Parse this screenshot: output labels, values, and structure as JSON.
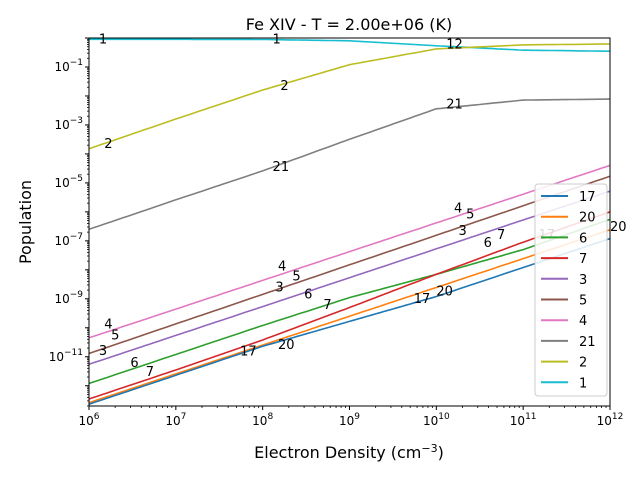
{
  "chart_data": {
    "type": "line",
    "title": "Fe XIV -  T =   2.00e+06 (K)",
    "xlabel": "Electron Density (cm",
    "xlabel_sup": "−3",
    "xlabel_tail": ")",
    "ylabel": "Population",
    "xscale": "log",
    "yscale": "log",
    "xlim": [
      1000000,
      1000000000000
    ],
    "ylim": [
      2e-13,
      1.0
    ],
    "x_ticks": [
      {
        "value": 1000000,
        "base": "10",
        "exp": "6"
      },
      {
        "value": 10000000,
        "base": "10",
        "exp": "7"
      },
      {
        "value": 100000000,
        "base": "10",
        "exp": "8"
      },
      {
        "value": 1000000000,
        "base": "10",
        "exp": "9"
      },
      {
        "value": 10000000000,
        "base": "10",
        "exp": "10"
      },
      {
        "value": 100000000000,
        "base": "10",
        "exp": "11"
      },
      {
        "value": 1000000000000,
        "base": "10",
        "exp": "12"
      }
    ],
    "y_ticks": [
      {
        "value": 1e-11,
        "base": "10",
        "exp": "−11"
      },
      {
        "value": 1e-09,
        "base": "10",
        "exp": "−9"
      },
      {
        "value": 1e-07,
        "base": "10",
        "exp": "−7"
      },
      {
        "value": 1e-05,
        "base": "10",
        "exp": "−5"
      },
      {
        "value": 0.001,
        "base": "10",
        "exp": "−3"
      },
      {
        "value": 0.1,
        "base": "10",
        "exp": "−1"
      }
    ],
    "legend_position": "center-right",
    "legend_order": [
      "17",
      "20",
      "6",
      "7",
      "3",
      "5",
      "4",
      "21",
      "2",
      "1"
    ],
    "series": [
      {
        "name": "1",
        "color": "#17becf",
        "points": [
          [
            1000000.0,
            0.9
          ],
          [
            10000000.0,
            0.9
          ],
          [
            100000000.0,
            0.89
          ],
          [
            1000000000.0,
            0.8
          ],
          [
            10000000000.0,
            0.54
          ],
          [
            100000000000.0,
            0.38
          ],
          [
            1000000000000.0,
            0.35
          ]
        ]
      },
      {
        "name": "2",
        "color": "#bcbd22",
        "points": [
          [
            1000000.0,
            0.00015
          ],
          [
            10000000.0,
            0.0016
          ],
          [
            100000000.0,
            0.016
          ],
          [
            1000000000.0,
            0.12
          ],
          [
            10000000000.0,
            0.42
          ],
          [
            100000000000.0,
            0.58
          ],
          [
            1000000000000.0,
            0.62
          ]
        ]
      },
      {
        "name": "21",
        "color": "#7f7f7f",
        "points": [
          [
            1000000.0,
            2.5e-07
          ],
          [
            10000000.0,
            2.6e-06
          ],
          [
            100000000.0,
            2.6e-05
          ],
          [
            1000000000.0,
            0.00032
          ],
          [
            10000000000.0,
            0.0036
          ],
          [
            100000000000.0,
            0.0072
          ],
          [
            1000000000000.0,
            0.0078
          ]
        ]
      },
      {
        "name": "4",
        "color": "#e377c2",
        "points": [
          [
            1000000.0,
            4.5e-11
          ],
          [
            1000000000000.0,
            4e-05
          ]
        ]
      },
      {
        "name": "5",
        "color": "#8c564b",
        "points": [
          [
            1000000.0,
            1.3e-11
          ],
          [
            1000000000000.0,
            1.7e-05
          ]
        ]
      },
      {
        "name": "3",
        "color": "#9467bd",
        "points": [
          [
            1000000.0,
            5.5e-12
          ],
          [
            1000000000000.0,
            5.2e-06
          ]
        ]
      },
      {
        "name": "6",
        "color": "#2ca02c",
        "points": [
          [
            1000000.0,
            1.2e-12
          ],
          [
            10000000.0,
            1.2e-11
          ],
          [
            100000000.0,
            1.2e-10
          ],
          [
            1000000000.0,
            1.1e-09
          ],
          [
            10000000000.0,
            7e-09
          ],
          [
            100000000000.0,
            5e-08
          ],
          [
            1000000000000.0,
            5.5e-07
          ]
        ]
      },
      {
        "name": "7",
        "color": "#d62728",
        "points": [
          [
            1000000.0,
            3.5e-13
          ],
          [
            10000000.0,
            3.5e-12
          ],
          [
            100000000.0,
            3.8e-11
          ],
          [
            1000000000.0,
            5e-10
          ],
          [
            10000000000.0,
            7e-09
          ],
          [
            100000000000.0,
            9e-08
          ],
          [
            1000000000000.0,
            1e-06
          ]
        ]
      },
      {
        "name": "20",
        "color": "#ff7f0e",
        "points": [
          [
            1000000.0,
            2.6e-13
          ],
          [
            1000000000000.0,
            2.4e-07
          ]
        ]
      },
      {
        "name": "17",
        "color": "#1f77b4",
        "points": [
          [
            1000000.0,
            2.3e-13
          ],
          [
            100000000.0,
            2.3e-11
          ],
          [
            10000000000.0,
            1.2e-09
          ],
          [
            1000000000000.0,
            1.2e-07
          ]
        ]
      }
    ],
    "annotations": [
      {
        "text": "1",
        "x": 1300000.0,
        "y": 0.9
      },
      {
        "text": "1",
        "x": 130000000.0,
        "y": 0.9
      },
      {
        "text": "12",
        "x": 13000000000.0,
        "y": 0.6
      },
      {
        "text": "2",
        "x": 1500000.0,
        "y": 0.00022
      },
      {
        "text": "2",
        "x": 160000000.0,
        "y": 0.022
      },
      {
        "text": "21",
        "x": 130000000.0,
        "y": 3.5e-05
      },
      {
        "text": "21",
        "x": 13000000000.0,
        "y": 0.005
      },
      {
        "text": "4",
        "x": 1500000.0,
        "y": 1.3e-10
      },
      {
        "text": "5",
        "x": 1800000.0,
        "y": 5.5e-11
      },
      {
        "text": "3",
        "x": 1300000.0,
        "y": 1.6e-11
      },
      {
        "text": "6",
        "x": 3000000.0,
        "y": 6e-12
      },
      {
        "text": "7",
        "x": 4500000.0,
        "y": 3e-12
      },
      {
        "text": "17",
        "x": 55000000.0,
        "y": 1.5e-11
      },
      {
        "text": "20",
        "x": 150000000.0,
        "y": 2.5e-11
      },
      {
        "text": "4",
        "x": 150000000.0,
        "y": 1.3e-08
      },
      {
        "text": "5",
        "x": 220000000.0,
        "y": 6e-09
      },
      {
        "text": "3",
        "x": 140000000.0,
        "y": 2.5e-09
      },
      {
        "text": "6",
        "x": 300000000.0,
        "y": 1.4e-09
      },
      {
        "text": "7",
        "x": 500000000.0,
        "y": 6e-10
      },
      {
        "text": "17",
        "x": 5500000000.0,
        "y": 1e-09
      },
      {
        "text": "20",
        "x": 10000000000.0,
        "y": 1.8e-09
      },
      {
        "text": "4",
        "x": 16000000000.0,
        "y": 1.3e-06
      },
      {
        "text": "5",
        "x": 22000000000.0,
        "y": 8e-07
      },
      {
        "text": "3",
        "x": 18000000000.0,
        "y": 2.2e-07
      },
      {
        "text": "7",
        "x": 50000000000.0,
        "y": 1.6e-07
      },
      {
        "text": "6",
        "x": 35000000000.0,
        "y": 8.5e-08
      },
      {
        "text": "20",
        "x": 1000000000000.0,
        "y": 3e-07
      },
      {
        "text": "17",
        "x": 150000000000.0,
        "y": 1.6e-07
      }
    ]
  }
}
